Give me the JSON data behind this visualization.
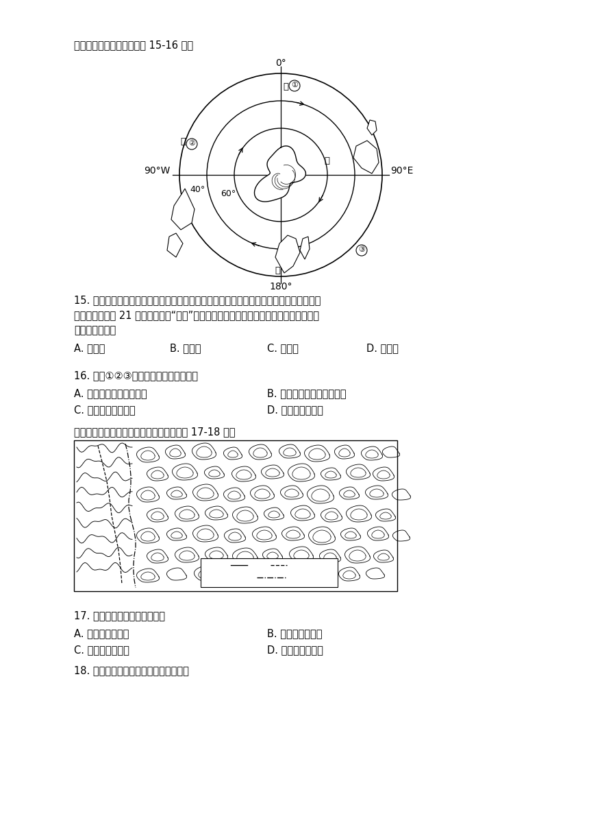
{
  "title_text": "读南半球局部区域图，回答 15-16 题。",
  "q15_line1": "15. 世界气象组织最新数据显示，已经持续较长时间的拉尼娜事件很可能会延续到今年年底",
  "q15_line2": "或更久，这将是 21 世纪首次出现“三重”拉尼娜事件。拉尼娜现象出现时，下列有可能渔",
  "q15_line3": "业增产的海域有",
  "q15_opts": [
    "甲和乙",
    "乙和丙",
    "丙和丁",
    "丁和甲"
  ],
  "q15_opt_labels": [
    "A.",
    "B.",
    "C.",
    "D."
  ],
  "q16_text": "16. 关于①②③自然带成因说法错误的是",
  "q16_opts": [
    "都与副热带高压带有关",
    "都处在盛行风向的背风坡",
    "都与沿岸对流有关",
    "都与离岸风有关"
  ],
  "q16_opt_labels": [
    "A.",
    "B.",
    "C.",
    "D."
  ],
  "map2_title": "读我国西南某特殊地貌等高线地形图，完成 17-18 题。",
  "q17_text": "17. 下列与该地貌成因相似的是",
  "q17_opts": [
    "科罗拉多大峡谷",
    "华山球状花岗岛",
    "挪威的峡湾海岸",
    "雁荡山的流纹岛"
  ],
  "q17_opt_labels": [
    "A.",
    "B.",
    "C.",
    "D."
  ],
  "q18_text": "18. 该地貌对人类生产生活产生的影响有",
  "bg_color": "#ffffff"
}
